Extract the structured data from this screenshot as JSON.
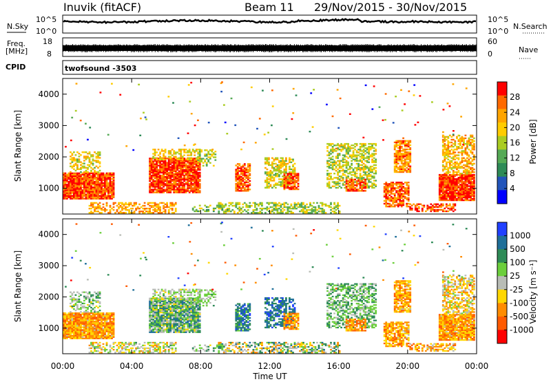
{
  "header": {
    "station": "Inuvik (fitACF)",
    "beam": "Beam 11",
    "date_range": "29/Nov/2015 - 30/Nov/2015"
  },
  "strips": {
    "nsky_label": "N.Sky",
    "nsky_top": "10^5",
    "nsky_bottom": "10^0",
    "nsearch_label": "N.Search",
    "nsearch_top": "10^5",
    "nsearch_bottom": "10^0",
    "freq_label": "Freq.",
    "freq_unit": "[MHz]",
    "freq_top": "18",
    "freq_bottom": "8",
    "nave_label": "Nave",
    "nave_top": "60",
    "nave_bottom": "0",
    "cpid_label": "CPID",
    "cpid_value": "twofsound -3503"
  },
  "colors": {
    "power_scale": [
      "#0000ff",
      "#2255bb",
      "#2e8b57",
      "#55aa55",
      "#aacc22",
      "#ffcc00",
      "#ffa500",
      "#ff6a00",
      "#ff0000"
    ],
    "velocity_scale": [
      "#2040ff",
      "#1f6f99",
      "#2e8b57",
      "#6ccf3c",
      "#b9bdb6",
      "#ffd700",
      "#ff8c00",
      "#ff5a00",
      "#ff0000"
    ],
    "trace": "#000000"
  },
  "chart_data": [
    {
      "type": "heatmap",
      "name": "power",
      "ylabel": "Slant Range [km]",
      "xlabel": "",
      "ylim": [
        180,
        4500
      ],
      "yticks": [
        "1000",
        "2000",
        "3000",
        "4000"
      ],
      "ytick_values": [
        1000,
        2000,
        3000,
        4000
      ],
      "colorbar_label": "Power [dB]",
      "colorbar_ticks": [
        "4",
        "8",
        "12",
        "16",
        "20",
        "24",
        "28"
      ],
      "colorbar_range": [
        0,
        32
      ]
    },
    {
      "type": "heatmap",
      "name": "velocity",
      "ylabel": "Slant Range [km]",
      "xlabel": "Time UT",
      "ylim": [
        180,
        4500
      ],
      "yticks": [
        "1000",
        "2000",
        "3000",
        "4000"
      ],
      "ytick_values": [
        1000,
        2000,
        3000,
        4000
      ],
      "colorbar_label": "Velocity [m s⁻¹]",
      "colorbar_ticks": [
        "1000",
        "500",
        "100",
        "25",
        "-25",
        "-100",
        "-500",
        "-1000"
      ]
    }
  ],
  "x_axis": {
    "xlim_hours": [
      0,
      24
    ],
    "ticks": [
      "00:00",
      "04:00",
      "08:00",
      "12:00",
      "16:00",
      "20:00",
      "00:00"
    ],
    "tick_hours": [
      0,
      4,
      8,
      12,
      16,
      20,
      24
    ]
  }
}
